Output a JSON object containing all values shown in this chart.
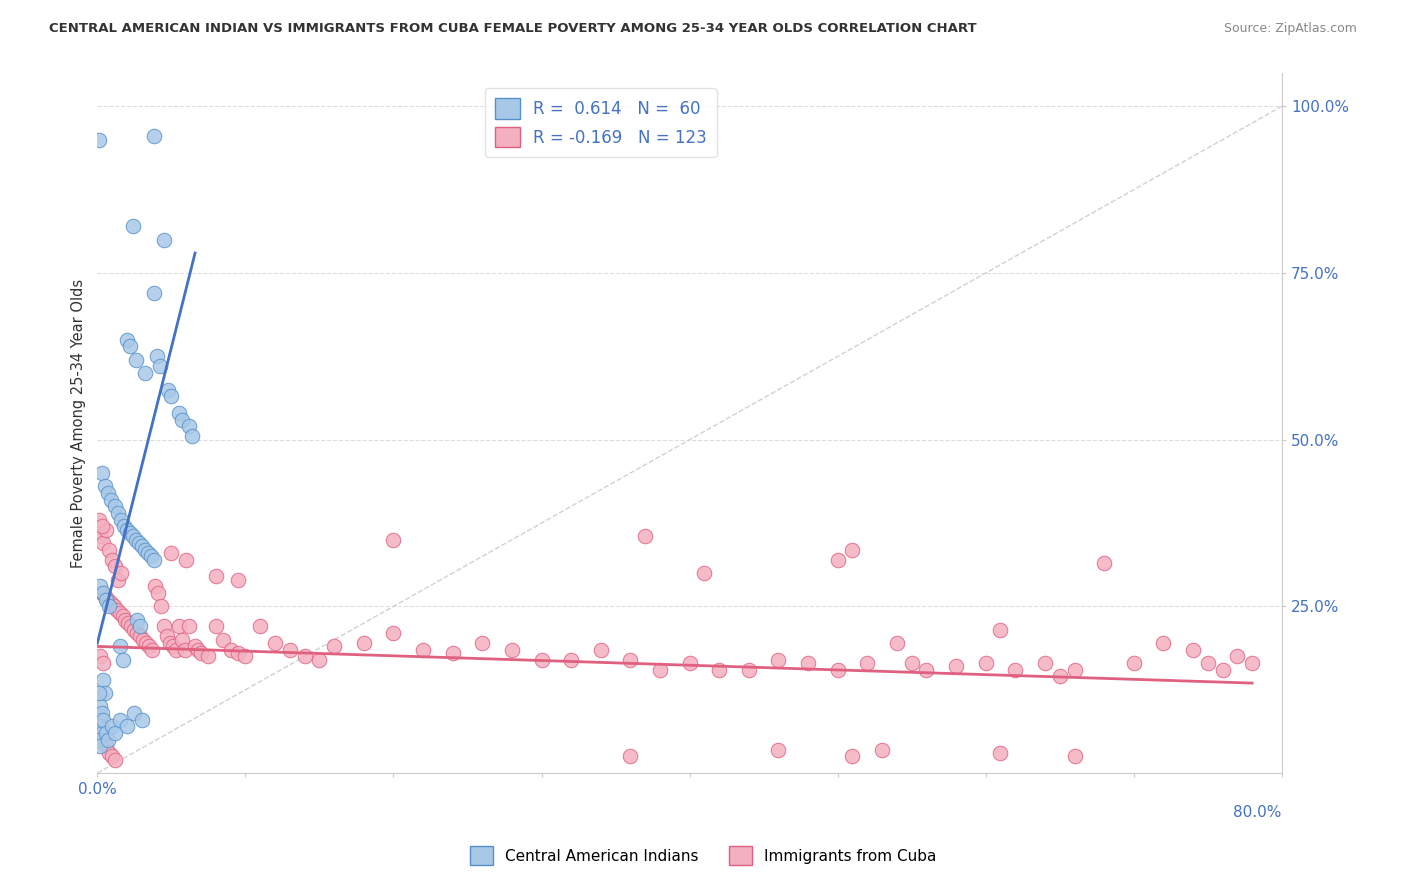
{
  "title": "CENTRAL AMERICAN INDIAN VS IMMIGRANTS FROM CUBA FEMALE POVERTY AMONG 25-34 YEAR OLDS CORRELATION CHART",
  "source": "Source: ZipAtlas.com",
  "ylabel": "Female Poverty Among 25-34 Year Olds",
  "right_yticks": [
    "100.0%",
    "75.0%",
    "50.0%",
    "25.0%"
  ],
  "right_ytick_vals": [
    1.0,
    0.75,
    0.5,
    0.25
  ],
  "blue_color": "#a8c8e8",
  "pink_color": "#f4b0c0",
  "blue_edge_color": "#5590c8",
  "pink_edge_color": "#e06080",
  "blue_line_color": "#4472c4",
  "pink_line_color": "#e06080",
  "xmin": 0.0,
  "xmax": 0.8,
  "ymin": 0.0,
  "ymax": 1.05,
  "blue_line_x0": 0.0,
  "blue_line_y0": 0.195,
  "blue_line_x1": 0.066,
  "blue_line_y1": 0.78,
  "pink_line_x0": 0.0,
  "pink_line_y0": 0.19,
  "pink_line_x1": 0.78,
  "pink_line_y1": 0.135,
  "blue_points": [
    [
      0.001,
      0.95
    ],
    [
      0.038,
      0.955
    ],
    [
      0.024,
      0.82
    ],
    [
      0.045,
      0.8
    ],
    [
      0.038,
      0.72
    ],
    [
      0.02,
      0.65
    ],
    [
      0.022,
      0.64
    ],
    [
      0.026,
      0.62
    ],
    [
      0.032,
      0.6
    ],
    [
      0.04,
      0.625
    ],
    [
      0.042,
      0.61
    ],
    [
      0.048,
      0.575
    ],
    [
      0.05,
      0.565
    ],
    [
      0.055,
      0.54
    ],
    [
      0.057,
      0.53
    ],
    [
      0.062,
      0.52
    ],
    [
      0.064,
      0.505
    ],
    [
      0.003,
      0.45
    ],
    [
      0.005,
      0.43
    ],
    [
      0.007,
      0.42
    ],
    [
      0.009,
      0.41
    ],
    [
      0.012,
      0.4
    ],
    [
      0.014,
      0.39
    ],
    [
      0.016,
      0.38
    ],
    [
      0.018,
      0.37
    ],
    [
      0.02,
      0.365
    ],
    [
      0.022,
      0.36
    ],
    [
      0.024,
      0.355
    ],
    [
      0.026,
      0.35
    ],
    [
      0.028,
      0.345
    ],
    [
      0.03,
      0.34
    ],
    [
      0.032,
      0.335
    ],
    [
      0.034,
      0.33
    ],
    [
      0.036,
      0.325
    ],
    [
      0.038,
      0.32
    ],
    [
      0.002,
      0.28
    ],
    [
      0.004,
      0.27
    ],
    [
      0.006,
      0.26
    ],
    [
      0.008,
      0.25
    ],
    [
      0.027,
      0.23
    ],
    [
      0.029,
      0.22
    ],
    [
      0.015,
      0.19
    ],
    [
      0.017,
      0.17
    ],
    [
      0.004,
      0.14
    ],
    [
      0.005,
      0.12
    ],
    [
      0.002,
      0.1
    ],
    [
      0.003,
      0.09
    ],
    [
      0.002,
      0.07
    ],
    [
      0.003,
      0.06
    ],
    [
      0.001,
      0.05
    ],
    [
      0.002,
      0.04
    ],
    [
      0.001,
      0.12
    ],
    [
      0.004,
      0.08
    ],
    [
      0.006,
      0.06
    ],
    [
      0.007,
      0.05
    ],
    [
      0.01,
      0.07
    ],
    [
      0.012,
      0.06
    ],
    [
      0.015,
      0.08
    ],
    [
      0.02,
      0.07
    ],
    [
      0.025,
      0.09
    ],
    [
      0.03,
      0.08
    ]
  ],
  "pink_points": [
    [
      0.002,
      0.355
    ],
    [
      0.004,
      0.345
    ],
    [
      0.006,
      0.365
    ],
    [
      0.008,
      0.335
    ],
    [
      0.01,
      0.32
    ],
    [
      0.012,
      0.31
    ],
    [
      0.014,
      0.29
    ],
    [
      0.016,
      0.3
    ],
    [
      0.003,
      0.27
    ],
    [
      0.005,
      0.265
    ],
    [
      0.007,
      0.26
    ],
    [
      0.009,
      0.255
    ],
    [
      0.011,
      0.25
    ],
    [
      0.013,
      0.245
    ],
    [
      0.015,
      0.24
    ],
    [
      0.017,
      0.235
    ],
    [
      0.019,
      0.23
    ],
    [
      0.021,
      0.225
    ],
    [
      0.023,
      0.22
    ],
    [
      0.025,
      0.215
    ],
    [
      0.027,
      0.21
    ],
    [
      0.029,
      0.205
    ],
    [
      0.031,
      0.2
    ],
    [
      0.033,
      0.195
    ],
    [
      0.035,
      0.19
    ],
    [
      0.037,
      0.185
    ],
    [
      0.039,
      0.28
    ],
    [
      0.041,
      0.27
    ],
    [
      0.043,
      0.25
    ],
    [
      0.045,
      0.22
    ],
    [
      0.047,
      0.205
    ],
    [
      0.049,
      0.195
    ],
    [
      0.051,
      0.19
    ],
    [
      0.053,
      0.185
    ],
    [
      0.055,
      0.22
    ],
    [
      0.057,
      0.2
    ],
    [
      0.059,
      0.185
    ],
    [
      0.062,
      0.22
    ],
    [
      0.066,
      0.19
    ],
    [
      0.068,
      0.185
    ],
    [
      0.07,
      0.18
    ],
    [
      0.075,
      0.175
    ],
    [
      0.08,
      0.22
    ],
    [
      0.085,
      0.2
    ],
    [
      0.09,
      0.185
    ],
    [
      0.095,
      0.18
    ],
    [
      0.1,
      0.175
    ],
    [
      0.11,
      0.22
    ],
    [
      0.12,
      0.195
    ],
    [
      0.13,
      0.185
    ],
    [
      0.14,
      0.175
    ],
    [
      0.15,
      0.17
    ],
    [
      0.16,
      0.19
    ],
    [
      0.18,
      0.195
    ],
    [
      0.2,
      0.21
    ],
    [
      0.22,
      0.185
    ],
    [
      0.24,
      0.18
    ],
    [
      0.26,
      0.195
    ],
    [
      0.28,
      0.185
    ],
    [
      0.3,
      0.17
    ],
    [
      0.32,
      0.17
    ],
    [
      0.34,
      0.185
    ],
    [
      0.36,
      0.17
    ],
    [
      0.37,
      0.355
    ],
    [
      0.38,
      0.155
    ],
    [
      0.4,
      0.165
    ],
    [
      0.41,
      0.3
    ],
    [
      0.42,
      0.155
    ],
    [
      0.44,
      0.155
    ],
    [
      0.46,
      0.17
    ],
    [
      0.48,
      0.165
    ],
    [
      0.5,
      0.155
    ],
    [
      0.51,
      0.335
    ],
    [
      0.52,
      0.165
    ],
    [
      0.54,
      0.195
    ],
    [
      0.55,
      0.165
    ],
    [
      0.56,
      0.155
    ],
    [
      0.58,
      0.16
    ],
    [
      0.6,
      0.165
    ],
    [
      0.61,
      0.215
    ],
    [
      0.62,
      0.155
    ],
    [
      0.64,
      0.165
    ],
    [
      0.65,
      0.145
    ],
    [
      0.66,
      0.155
    ],
    [
      0.68,
      0.315
    ],
    [
      0.7,
      0.165
    ],
    [
      0.72,
      0.195
    ],
    [
      0.74,
      0.185
    ],
    [
      0.75,
      0.165
    ],
    [
      0.76,
      0.155
    ],
    [
      0.77,
      0.175
    ],
    [
      0.006,
      0.04
    ],
    [
      0.008,
      0.03
    ],
    [
      0.01,
      0.025
    ],
    [
      0.012,
      0.02
    ],
    [
      0.36,
      0.025
    ],
    [
      0.46,
      0.035
    ],
    [
      0.51,
      0.025
    ],
    [
      0.53,
      0.035
    ],
    [
      0.61,
      0.03
    ],
    [
      0.66,
      0.025
    ],
    [
      0.002,
      0.175
    ],
    [
      0.004,
      0.165
    ],
    [
      0.001,
      0.38
    ],
    [
      0.003,
      0.37
    ],
    [
      0.05,
      0.33
    ],
    [
      0.06,
      0.32
    ],
    [
      0.08,
      0.295
    ],
    [
      0.095,
      0.29
    ],
    [
      0.2,
      0.35
    ],
    [
      0.5,
      0.32
    ],
    [
      0.78,
      0.165
    ]
  ]
}
